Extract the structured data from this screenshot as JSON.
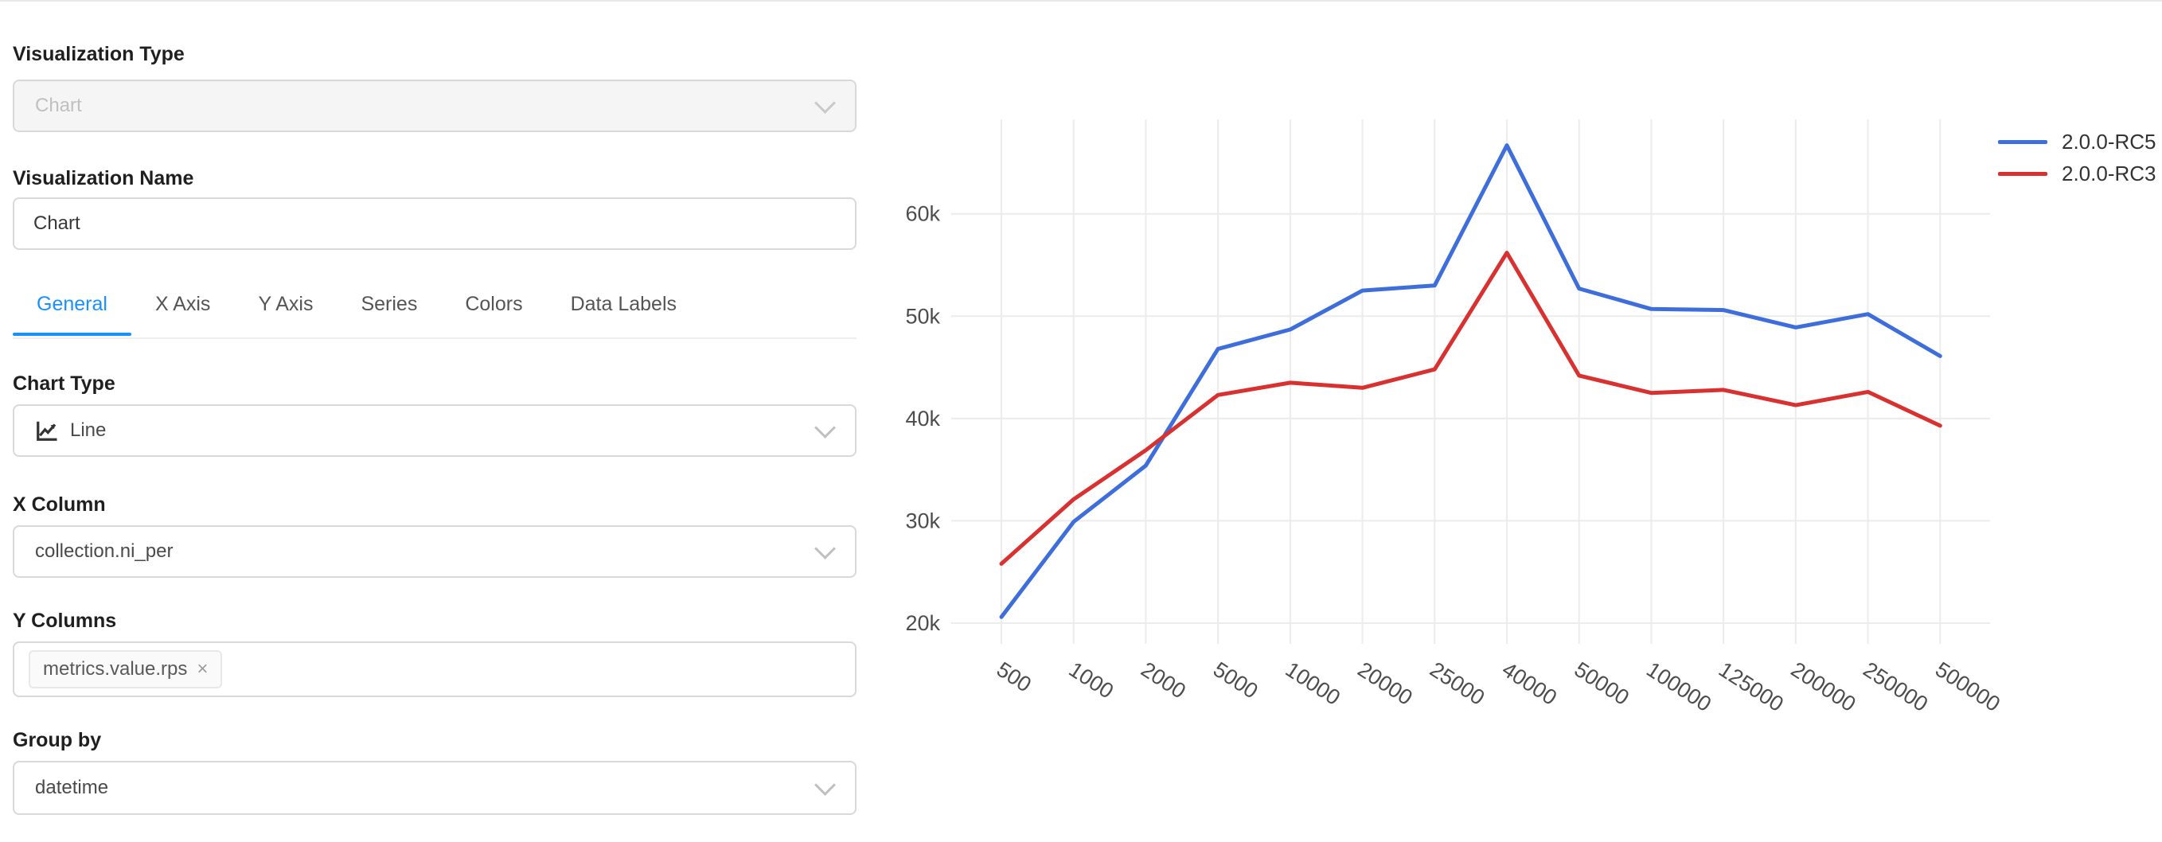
{
  "form": {
    "visualization_type": {
      "label": "Visualization Type",
      "value": "Chart"
    },
    "visualization_name": {
      "label": "Visualization Name",
      "value": "Chart"
    },
    "tabs": [
      {
        "label": "General",
        "active": true
      },
      {
        "label": "X Axis",
        "active": false
      },
      {
        "label": "Y Axis",
        "active": false
      },
      {
        "label": "Series",
        "active": false
      },
      {
        "label": "Colors",
        "active": false
      },
      {
        "label": "Data Labels",
        "active": false
      }
    ],
    "chart_type": {
      "label": "Chart Type",
      "value": "Line",
      "icon": "line-chart-icon"
    },
    "x_column": {
      "label": "X Column",
      "value": "collection.ni_per"
    },
    "y_columns": {
      "label": "Y Columns",
      "tags": [
        {
          "text": "metrics.value.rps",
          "close": "×"
        }
      ]
    },
    "group_by": {
      "label": "Group by",
      "value": "datetime"
    }
  },
  "colors": {
    "accent": "#1890ff",
    "series_blue": "#3D6EDB",
    "series_red": "#D93030",
    "gridline": "#ececec",
    "tick_text": "#4d4d4d"
  },
  "chart_data": {
    "type": "line",
    "categories": [
      "500",
      "1000",
      "2000",
      "5000",
      "10000",
      "20000",
      "25000",
      "40000",
      "50000",
      "100000",
      "125000",
      "200000",
      "250000",
      "500000"
    ],
    "series": [
      {
        "name": "2.0.0-RC5",
        "color": "#3D6EDB",
        "values": [
          20600,
          29900,
          35400,
          46800,
          48700,
          52500,
          53000,
          66700,
          52700,
          50700,
          50600,
          48900,
          50200,
          46100
        ]
      },
      {
        "name": "2.0.0-RC3",
        "color": "#D93030",
        "values": [
          25800,
          32100,
          36900,
          42300,
          43500,
          43000,
          44800,
          56200,
          44200,
          42500,
          42800,
          41300,
          42600,
          39300
        ]
      }
    ],
    "y_ticks": [
      {
        "label": "20k",
        "value": 20000
      },
      {
        "label": "30k",
        "value": 30000
      },
      {
        "label": "40k",
        "value": 40000
      },
      {
        "label": "50k",
        "value": 50000
      },
      {
        "label": "60k",
        "value": 60000
      }
    ],
    "title": "",
    "xlabel": "",
    "ylabel": "",
    "ylim": [
      17900,
      69400
    ],
    "grid": true,
    "legend_position": "top-right",
    "x_tick_angle": 33
  }
}
